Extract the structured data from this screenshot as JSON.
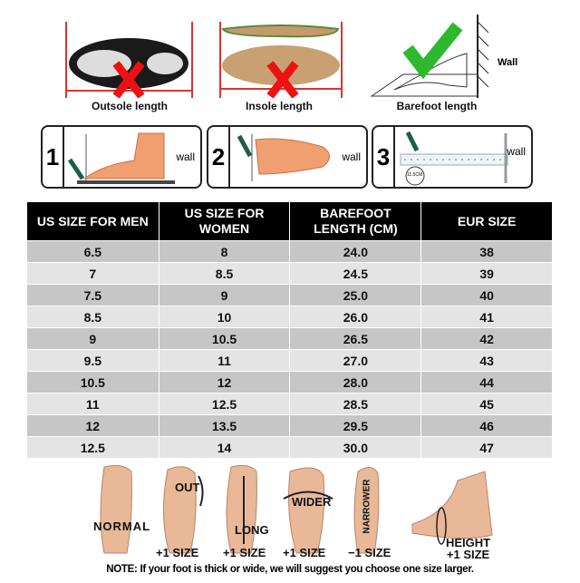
{
  "measure": {
    "outsole_label": "Outsole length",
    "insole_label": "Insole length",
    "barefoot_label": "Barefoot length",
    "wall_label": "Wall"
  },
  "steps": [
    {
      "number": "1",
      "wall": "wall"
    },
    {
      "number": "2",
      "wall": "wall"
    },
    {
      "number": "3",
      "wall": "wall",
      "ruler_mark": "11.5CM"
    }
  ],
  "table": {
    "headers": [
      "US SIZE FOR MEN",
      "US SIZE FOR WOMEN",
      "BAREFOOT LENGTH (CM)",
      "EUR SIZE"
    ],
    "rows": [
      [
        "6.5",
        "8",
        "24.0",
        "38"
      ],
      [
        "7",
        "8.5",
        "24.5",
        "39"
      ],
      [
        "7.5",
        "9",
        "25.0",
        "40"
      ],
      [
        "8.5",
        "10",
        "26.0",
        "41"
      ],
      [
        "9",
        "10.5",
        "26.5",
        "42"
      ],
      [
        "9.5",
        "11",
        "27.0",
        "43"
      ],
      [
        "10.5",
        "12",
        "28.0",
        "44"
      ],
      [
        "11",
        "12.5",
        "28.5",
        "45"
      ],
      [
        "12",
        "13.5",
        "29.5",
        "46"
      ],
      [
        "12.5",
        "14",
        "30.0",
        "47"
      ]
    ]
  },
  "feet": {
    "normal": "NORMAL",
    "out": "OUT",
    "long": "LONG",
    "wider": "WIDER",
    "narrower": "NARROWER",
    "height": "HEIGHT",
    "plus_one": "+1 SIZE",
    "minus_one": "−1 SIZE"
  },
  "note": "NOTE: If your foot is thick or wide, we will suggest you choose one size larger."
}
